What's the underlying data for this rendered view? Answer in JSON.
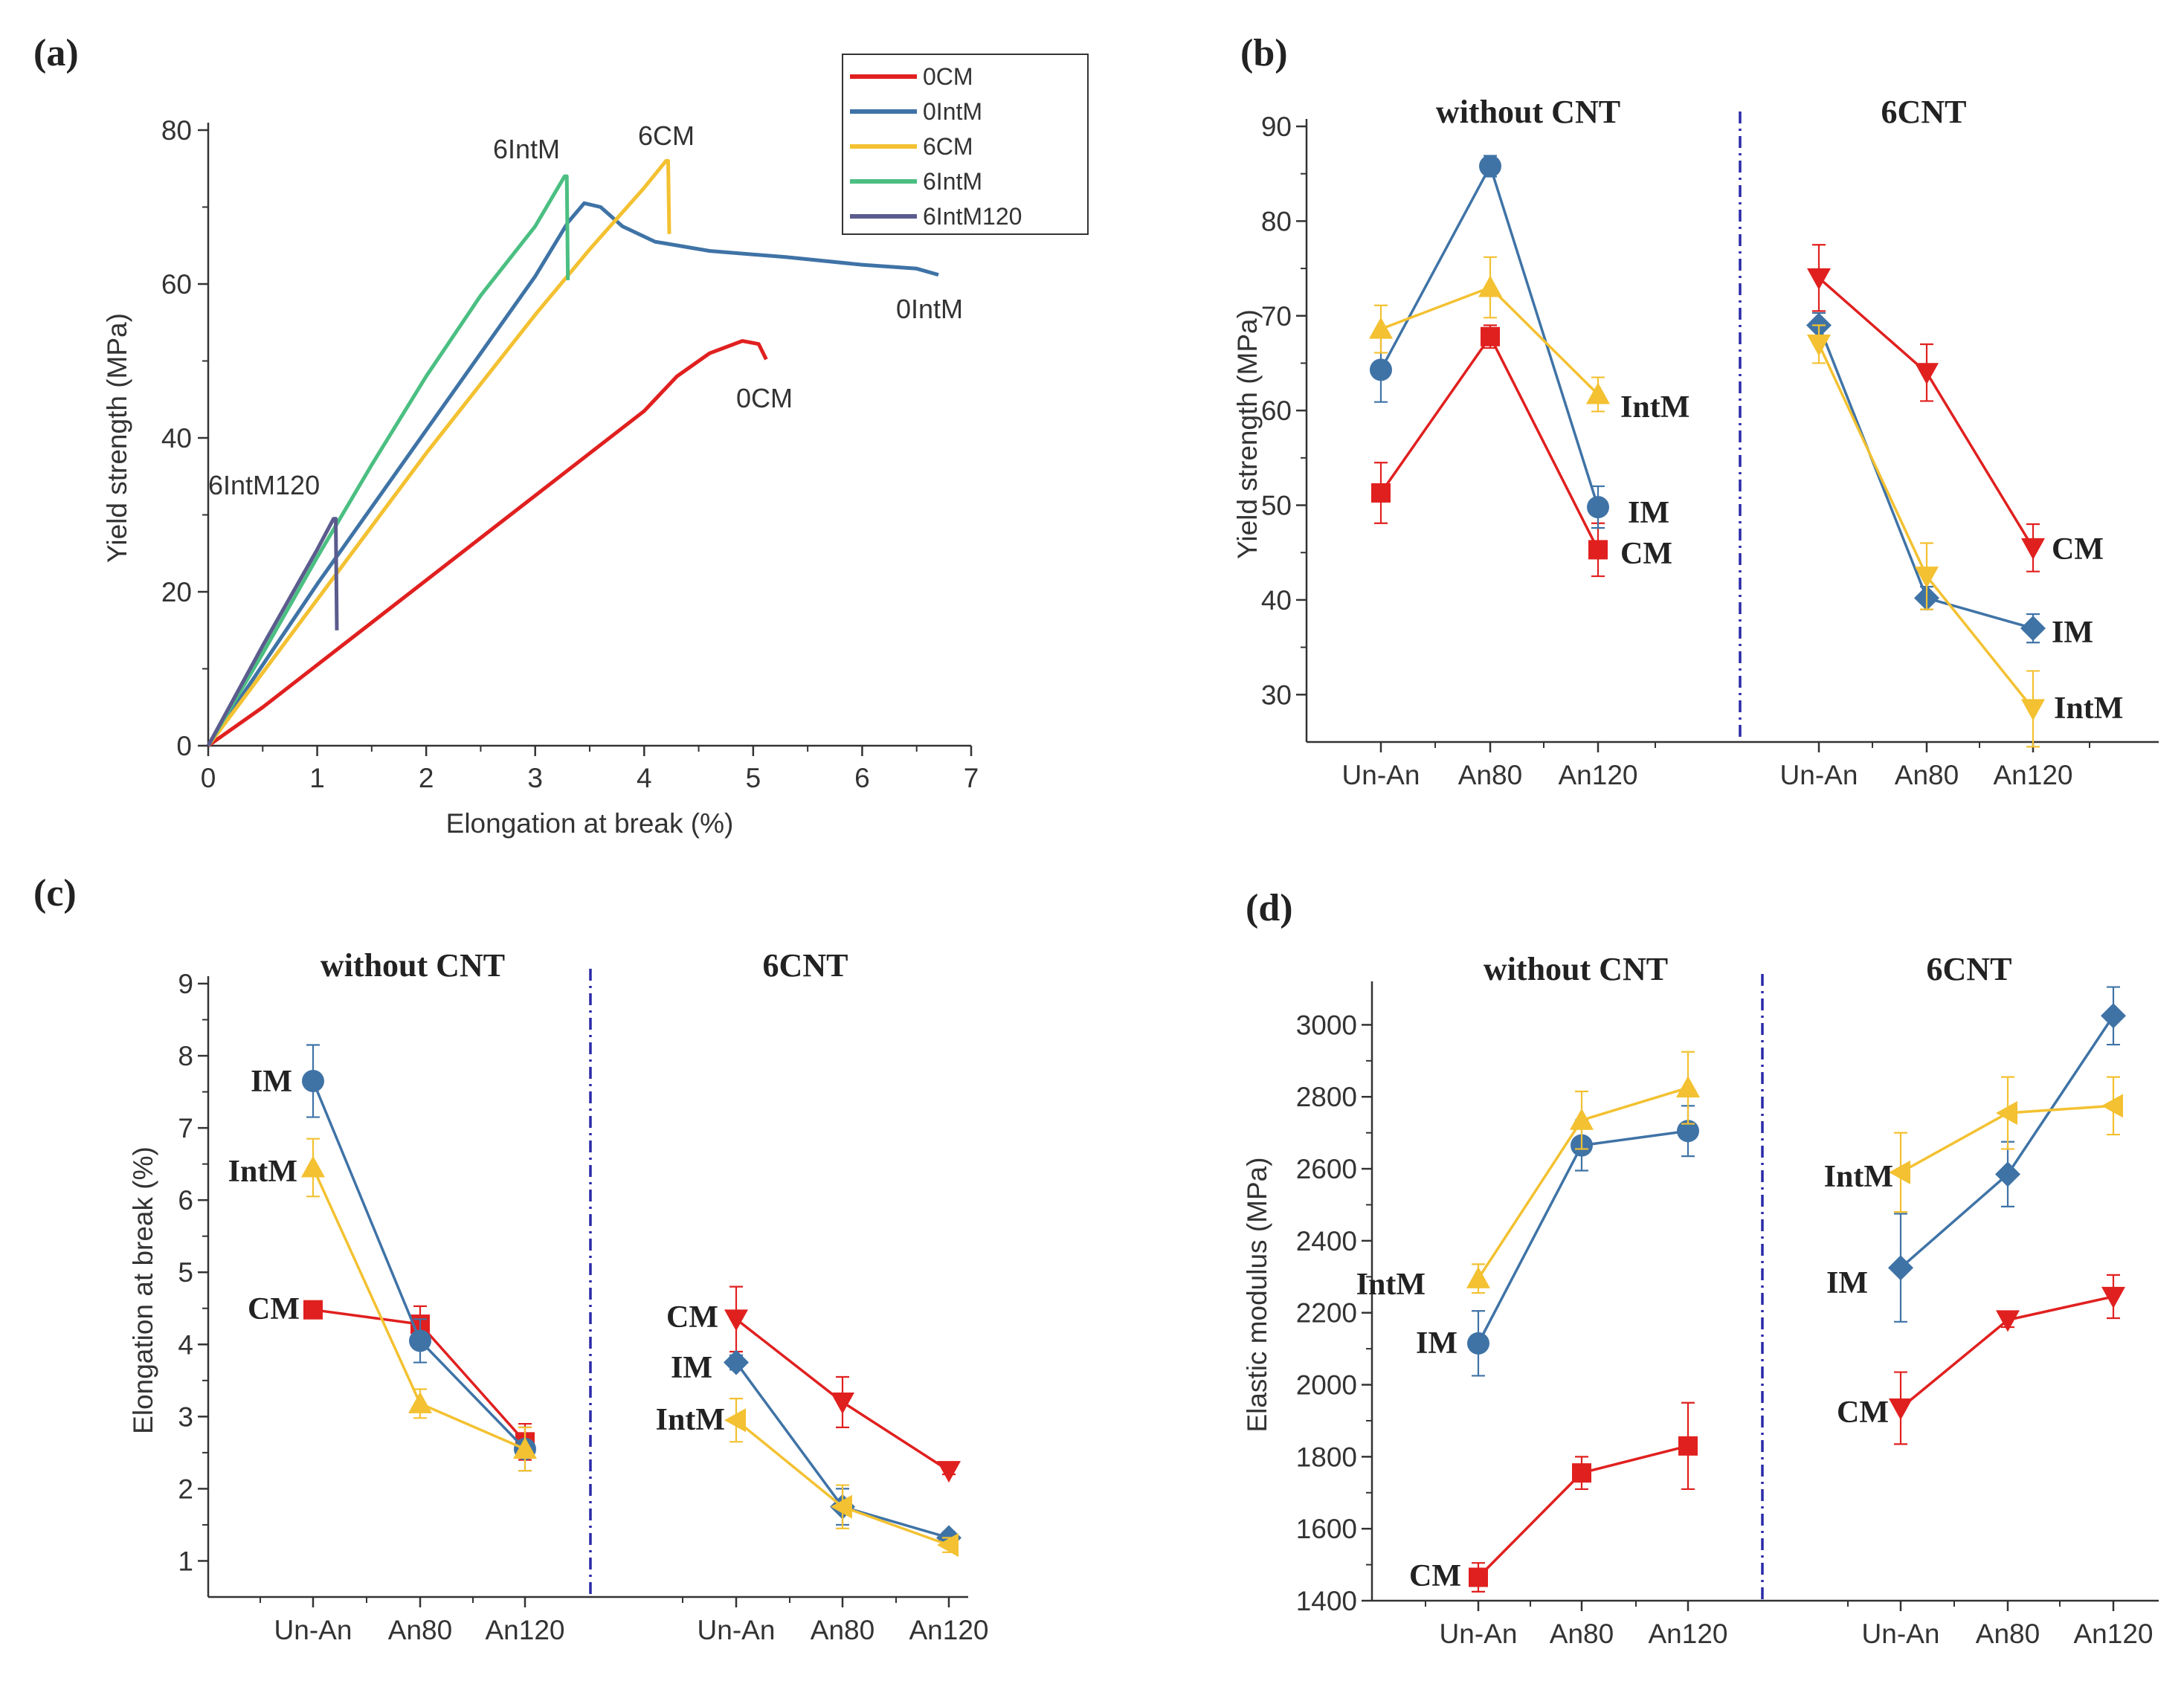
{
  "colors": {
    "red": "#e0201f",
    "blue": "#3f73a6",
    "yellow": "#f3c131",
    "green": "#4bbf82",
    "purple": "#5b5b8e",
    "sep": "#2a2aa8"
  },
  "chart_data": [
    {
      "panel": "(a)",
      "type": "line",
      "xlabel": "Elongation at break (%)",
      "ylabel": "Yield strength (MPa)",
      "xlim": [
        0,
        7
      ],
      "ylim": [
        0,
        80
      ],
      "xticks": [
        "0",
        "1",
        "2",
        "3",
        "4",
        "5",
        "6",
        "7"
      ],
      "yticks": [
        "0",
        "20",
        "40",
        "60",
        "80"
      ],
      "legend": {
        "position": "top-right",
        "entries": [
          "0CM",
          "0IntM",
          "6CM",
          "6IntM",
          "6IntM120"
        ]
      },
      "series": [
        {
          "name": "0CM",
          "label": "0CM",
          "color": "red",
          "points": [
            [
              0,
              0
            ],
            [
              0.5,
              5
            ],
            [
              1,
              10.5
            ],
            [
              1.5,
              16
            ],
            [
              2,
              21.5
            ],
            [
              2.5,
              27
            ],
            [
              3,
              32.5
            ],
            [
              3.5,
              38
            ],
            [
              4,
              43.5
            ],
            [
              4.3,
              48
            ],
            [
              4.6,
              51
            ],
            [
              4.9,
              52.6
            ],
            [
              5.05,
              52.2
            ],
            [
              5.12,
              50.2
            ]
          ]
        },
        {
          "name": "0IntM",
          "label": "0IntM",
          "color": "blue",
          "points": [
            [
              0,
              0
            ],
            [
              0.5,
              10.5
            ],
            [
              1,
              21
            ],
            [
              1.5,
              31
            ],
            [
              2,
              41
            ],
            [
              2.5,
              51
            ],
            [
              3,
              61
            ],
            [
              3.3,
              68
            ],
            [
              3.45,
              70.5
            ],
            [
              3.6,
              70
            ],
            [
              3.8,
              67.5
            ],
            [
              4.1,
              65.5
            ],
            [
              4.6,
              64.3
            ],
            [
              5.3,
              63.5
            ],
            [
              6,
              62.5
            ],
            [
              6.5,
              62
            ],
            [
              6.7,
              61.2
            ]
          ]
        },
        {
          "name": "6CM",
          "label": "6CM",
          "color": "yellow",
          "points": [
            [
              0,
              0
            ],
            [
              0.5,
              9.5
            ],
            [
              1,
              19
            ],
            [
              1.5,
              28.5
            ],
            [
              2,
              38
            ],
            [
              2.5,
              47
            ],
            [
              3,
              56
            ],
            [
              3.5,
              64.5
            ],
            [
              4,
              72.5
            ],
            [
              4.2,
              76
            ],
            [
              4.22,
              76
            ],
            [
              4.23,
              66.5
            ]
          ]
        },
        {
          "name": "6IntM",
          "label": "6IntM",
          "color": "green",
          "points": [
            [
              0,
              0
            ],
            [
              0.5,
              12
            ],
            [
              1,
              24.5
            ],
            [
              1.5,
              36.5
            ],
            [
              2,
              48
            ],
            [
              2.5,
              58.5
            ],
            [
              3,
              67.5
            ],
            [
              3.27,
              74
            ],
            [
              3.29,
              74
            ],
            [
              3.3,
              60.5
            ]
          ]
        },
        {
          "name": "6IntM120",
          "label": "6IntM120",
          "color": "purple",
          "points": [
            [
              0,
              0
            ],
            [
              0.5,
              13
            ],
            [
              1,
              25.5
            ],
            [
              1.15,
              29.5
            ],
            [
              1.17,
              29.5
            ],
            [
              1.18,
              15
            ]
          ]
        }
      ]
    },
    {
      "panel": "(b)",
      "type": "line",
      "ylabel": "Yield strength (MPa)",
      "ylim": [
        25,
        90
      ],
      "yticks": [
        "30",
        "40",
        "50",
        "60",
        "70",
        "80",
        "90"
      ],
      "groups": [
        {
          "title": "without CNT",
          "categories": [
            "Un-An",
            "An80",
            "An120"
          ],
          "series": [
            {
              "name": "CM",
              "label": "CM",
              "color": "red",
              "marker": "square",
              "values": [
                51.3,
                67.8,
                45.3
              ],
              "err": [
                3.2,
                1.2,
                2.8
              ]
            },
            {
              "name": "IM",
              "label": "IM",
              "color": "blue",
              "marker": "circle",
              "values": [
                64.3,
                85.8,
                49.8
              ],
              "err": [
                3.4,
                1.1,
                2.2
              ]
            },
            {
              "name": "IntM",
              "label": "IntM",
              "color": "yellow",
              "marker": "triangle-up",
              "values": [
                68.6,
                73,
                61.7
              ],
              "err": [
                2.5,
                3.2,
                1.8
              ]
            }
          ]
        },
        {
          "title": "6CNT",
          "categories": [
            "Un-An",
            "An80",
            "An120"
          ],
          "series": [
            {
              "name": "CM",
              "label": "CM",
              "color": "red",
              "marker": "triangle-down",
              "values": [
                74,
                64,
                45.5
              ],
              "err": [
                3.5,
                3,
                2.5
              ]
            },
            {
              "name": "IM",
              "label": "IM",
              "color": "blue",
              "marker": "diamond",
              "values": [
                69,
                40.2,
                37
              ],
              "err": [
                1.3,
                1.2,
                1.5
              ]
            },
            {
              "name": "IntM",
              "label": "IntM",
              "color": "yellow",
              "marker": "triangle-down",
              "values": [
                67,
                42.5,
                28.5
              ],
              "err": [
                2,
                3.5,
                4
              ]
            }
          ]
        }
      ]
    },
    {
      "panel": "(c)",
      "type": "line",
      "ylabel": "Elongation at break (%)",
      "ylim": [
        0.5,
        9
      ],
      "yticks": [
        "1",
        "2",
        "3",
        "4",
        "5",
        "6",
        "7",
        "8",
        "9"
      ],
      "groups": [
        {
          "title": "without CNT",
          "categories": [
            "Un-An",
            "An80",
            "An120"
          ],
          "series": [
            {
              "name": "CM",
              "label": "CM",
              "color": "red",
              "marker": "square",
              "values": [
                4.48,
                4.28,
                2.65
              ],
              "err": [
                0.08,
                0.25,
                0.25
              ]
            },
            {
              "name": "IM",
              "label": "IM",
              "color": "blue",
              "marker": "circle",
              "values": [
                7.65,
                4.05,
                2.55
              ],
              "err": [
                0.5,
                0.3,
                0.3
              ]
            },
            {
              "name": "IntM",
              "label": "IntM",
              "color": "yellow",
              "marker": "triangle-up",
              "values": [
                6.45,
                3.18,
                2.55
              ],
              "err": [
                0.4,
                0.2,
                0.3
              ]
            }
          ]
        },
        {
          "title": "6CNT",
          "categories": [
            "Un-An",
            "An80",
            "An120"
          ],
          "series": [
            {
              "name": "CM",
              "label": "CM",
              "color": "red",
              "marker": "triangle-down",
              "values": [
                4.35,
                3.2,
                2.25
              ],
              "err": [
                0.45,
                0.35,
                0.05
              ]
            },
            {
              "name": "IM",
              "label": "IM",
              "color": "blue",
              "marker": "diamond",
              "values": [
                3.75,
                1.75,
                1.32
              ],
              "err": [
                0.1,
                0.25,
                0.08
              ]
            },
            {
              "name": "IntM",
              "label": "IntM",
              "color": "yellow",
              "marker": "triangle-left",
              "values": [
                2.95,
                1.75,
                1.22
              ],
              "err": [
                0.3,
                0.3,
                0.1
              ]
            }
          ]
        }
      ]
    },
    {
      "panel": "(d)",
      "type": "line",
      "ylabel": "Elastic modulus (MPa)",
      "ylim": [
        1400,
        3100
      ],
      "yticks": [
        "1400",
        "1600",
        "1800",
        "2000",
        "2200",
        "2400",
        "2600",
        "2800",
        "3000"
      ],
      "groups": [
        {
          "title": "without CNT",
          "categories": [
            "Un-An",
            "An80",
            "An120"
          ],
          "series": [
            {
              "name": "CM",
              "label": "CM",
              "color": "red",
              "marker": "square",
              "values": [
                1465,
                1755,
                1830
              ],
              "err": [
                40,
                45,
                120
              ]
            },
            {
              "name": "IM",
              "label": "IM",
              "color": "blue",
              "marker": "circle",
              "values": [
                2115,
                2665,
                2705
              ],
              "err": [
                90,
                70,
                70
              ]
            },
            {
              "name": "IntM",
              "label": "IntM",
              "color": "yellow",
              "marker": "triangle-up",
              "values": [
                2295,
                2735,
                2825
              ],
              "err": [
                40,
                80,
                100
              ]
            }
          ]
        },
        {
          "title": "6CNT",
          "categories": [
            "Un-An",
            "An80",
            "An120"
          ],
          "series": [
            {
              "name": "CM",
              "label": "CM",
              "color": "red",
              "marker": "triangle-down",
              "values": [
                1935,
                2180,
                2245
              ],
              "err": [
                100,
                20,
                60
              ]
            },
            {
              "name": "IM",
              "label": "IM",
              "color": "blue",
              "marker": "diamond",
              "values": [
                2325,
                2585,
                3025
              ],
              "err": [
                150,
                90,
                80
              ]
            },
            {
              "name": "IntM",
              "label": "IntM",
              "color": "yellow",
              "marker": "triangle-left",
              "values": [
                2590,
                2755,
                2775
              ],
              "err": [
                110,
                100,
                80
              ]
            }
          ]
        }
      ]
    }
  ]
}
